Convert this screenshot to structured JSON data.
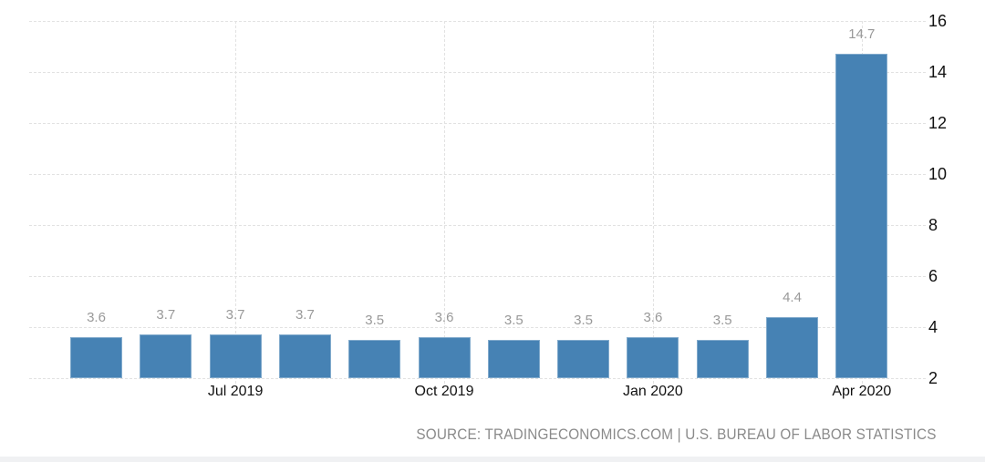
{
  "chart_data": {
    "type": "bar",
    "title": "",
    "values": [
      3.6,
      3.7,
      3.7,
      3.7,
      3.5,
      3.6,
      3.5,
      3.5,
      3.6,
      3.5,
      4.4,
      14.7
    ],
    "x_ticks": [
      {
        "index": 2,
        "label": "Jul 2019"
      },
      {
        "index": 5,
        "label": "Oct 2019"
      },
      {
        "index": 8,
        "label": "Jan 2020"
      },
      {
        "index": 11,
        "label": "Apr 2020"
      }
    ],
    "y_ticks": [
      2,
      4,
      6,
      8,
      10,
      12,
      14,
      16
    ],
    "ylim": [
      2,
      16
    ],
    "grid": "dashed",
    "legend": "none",
    "value_label_format": "one-decimal",
    "colors": {
      "bar": "#4682b4",
      "gridline": "#e2e2e2",
      "value_label": "#999999",
      "axis_label": "#111111",
      "source_text": "#8a8a8a",
      "bottom_strip": "#f0f1f3"
    }
  },
  "footer": {
    "source_text": "SOURCE: TRADINGECONOMICS.COM | U.S. BUREAU OF LABOR STATISTICS"
  }
}
